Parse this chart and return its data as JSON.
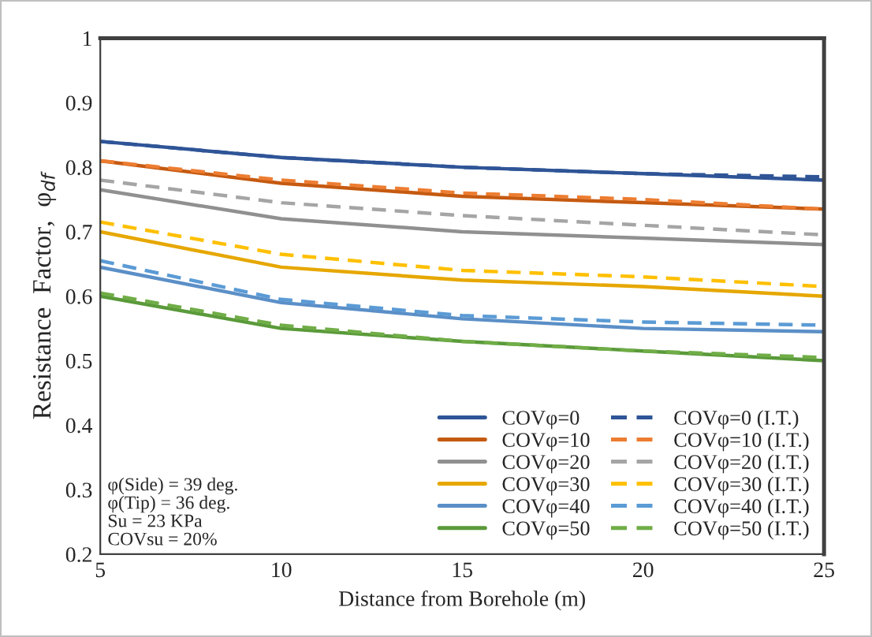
{
  "chart_data": {
    "type": "line",
    "xlabel": "Distance from Borehole (m)",
    "ylabel": "Resistance  Factor,  φ$_{df}$",
    "x": [
      5,
      10,
      15,
      20,
      25
    ],
    "xlim": [
      5,
      25
    ],
    "xticks": [
      5,
      10,
      15,
      20,
      25
    ],
    "ylim": [
      0.2,
      1
    ],
    "yticks": [
      0.2,
      0.3,
      0.4,
      0.5,
      0.6,
      0.7,
      0.8,
      0.9,
      1
    ],
    "grid": false,
    "legend": "bottom right",
    "marker": "none",
    "series": [
      {
        "name": "COVφ=0",
        "color": "#2f5597",
        "line_style": "solid",
        "values": [
          0.84,
          0.815,
          0.8,
          0.79,
          0.78
        ]
      },
      {
        "name": "COVφ=10",
        "color": "#c55a11",
        "line_style": "solid",
        "values": [
          0.81,
          0.775,
          0.755,
          0.745,
          0.735
        ]
      },
      {
        "name": "COVφ=20",
        "color": "#909090",
        "line_style": "solid",
        "values": [
          0.765,
          0.72,
          0.7,
          0.69,
          0.68
        ]
      },
      {
        "name": "COVφ=30",
        "color": "#e6a700",
        "line_style": "solid",
        "values": [
          0.7,
          0.645,
          0.625,
          0.615,
          0.6
        ]
      },
      {
        "name": "COVφ=40",
        "color": "#5b8fc7",
        "line_style": "solid",
        "values": [
          0.645,
          0.59,
          0.565,
          0.55,
          0.545
        ]
      },
      {
        "name": "COVφ=50",
        "color": "#5a9a3a",
        "line_style": "solid",
        "values": [
          0.6,
          0.55,
          0.53,
          0.515,
          0.5
        ]
      },
      {
        "name": "COVφ=0 (I.T.)",
        "color": "#2f5597",
        "line_style": "dashed",
        "values": [
          0.84,
          0.815,
          0.8,
          0.79,
          0.785
        ]
      },
      {
        "name": "COVφ=10 (I.T.)",
        "color": "#ed7d31",
        "line_style": "dashed",
        "values": [
          0.81,
          0.78,
          0.76,
          0.75,
          0.735
        ]
      },
      {
        "name": "COVφ=20 (I.T.)",
        "color": "#a5a5a5",
        "line_style": "dashed",
        "values": [
          0.78,
          0.745,
          0.725,
          0.71,
          0.695
        ]
      },
      {
        "name": "COVφ=30 (I.T.)",
        "color": "#ffc000",
        "line_style": "dashed",
        "values": [
          0.715,
          0.665,
          0.64,
          0.63,
          0.615
        ]
      },
      {
        "name": "COVφ=40 (I.T.)",
        "color": "#5b9bd5",
        "line_style": "dashed",
        "values": [
          0.655,
          0.595,
          0.57,
          0.56,
          0.555
        ]
      },
      {
        "name": "COVφ=50 (I.T.)",
        "color": "#70ad47",
        "line_style": "dashed",
        "values": [
          0.605,
          0.555,
          0.53,
          0.515,
          0.505
        ]
      }
    ],
    "annotations": [
      "φ(Side) = 39 deg.\nφ(Tip) = 36 deg.\nSu = 23 KPa\nCOVsu = 20%"
    ]
  }
}
